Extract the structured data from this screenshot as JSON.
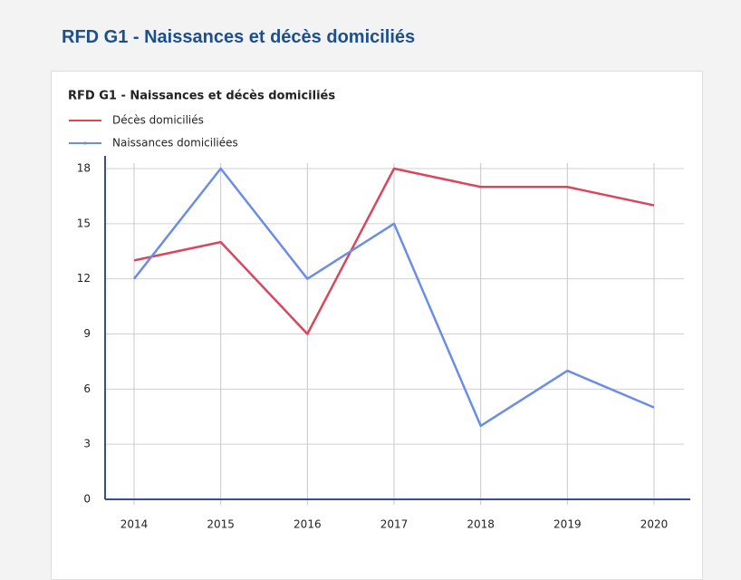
{
  "page_title": "RFD G1 - Naissances et décès domiciliés",
  "chart_data": {
    "type": "line",
    "title": "RFD G1 - Naissances et décès domiciliés",
    "categories": [
      "2014",
      "2015",
      "2016",
      "2017",
      "2018",
      "2019",
      "2020"
    ],
    "series": [
      {
        "name": "Décès domiciliés",
        "color": "#d9475f",
        "values": [
          13,
          14,
          9,
          18,
          17,
          17,
          16
        ]
      },
      {
        "name": "Naissances domiciliées",
        "color": "#6b8de8",
        "values": [
          12,
          18,
          12,
          15,
          4,
          7,
          5
        ]
      }
    ],
    "ylim": [
      0,
      18
    ],
    "yticks": [
      0,
      3,
      6,
      9,
      12,
      15,
      18
    ],
    "grid": true
  }
}
